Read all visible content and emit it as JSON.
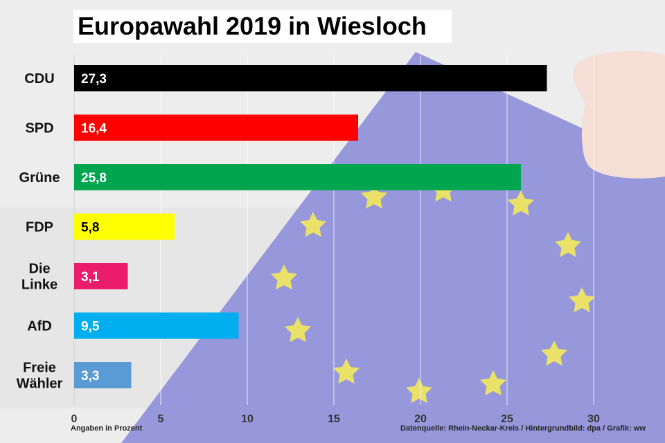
{
  "title": "Europawahl 2019 in Wiesloch",
  "footer": {
    "unit_note": "Angaben in Prozent",
    "source": "Datenquelle: Rhein-Neckar-Kreis  / Hintergrundbild: dpa / Grafik: ww"
  },
  "colors": {
    "CDU": "#000000",
    "SPD": "#ff0000",
    "Grüne": "#00a550",
    "FDP": "#ffff00",
    "Die Linke": "#ec1c6c",
    "AfD": "#00aeef",
    "Freie Wähler": "#5b9bd5"
  },
  "chart_data": {
    "type": "bar",
    "orientation": "horizontal",
    "title": "Europawahl 2019 in Wiesloch",
    "categories": [
      "CDU",
      "SPD",
      "Grüne",
      "FDP",
      "Die Linke",
      "AfD",
      "Freie Wähler"
    ],
    "values": [
      27.3,
      16.4,
      25.8,
      5.8,
      3.1,
      9.5,
      3.3
    ],
    "value_labels": [
      "27,3",
      "16,4",
      "25,8",
      "5,8",
      "3,1",
      "9,5",
      "3,3"
    ],
    "x_ticks": [
      0,
      5,
      10,
      15,
      20,
      25,
      30
    ],
    "xlim": [
      0,
      34
    ],
    "xlabel": "Angaben in Prozent",
    "grid": "vertical",
    "legend": "none"
  }
}
